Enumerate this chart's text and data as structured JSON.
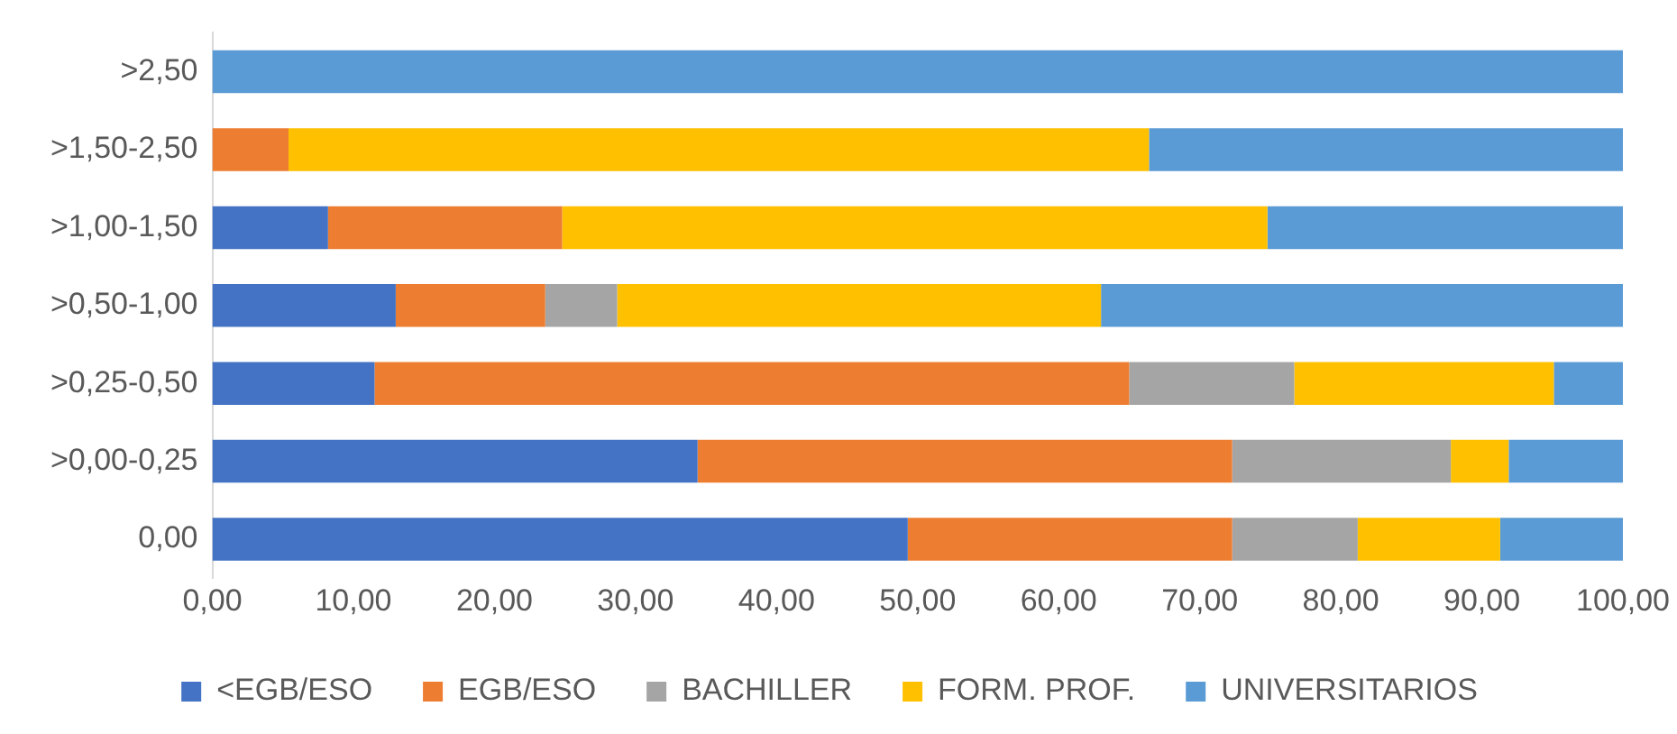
{
  "chart_data": {
    "type": "bar",
    "orientation": "horizontal",
    "stacked": true,
    "legend": "bottom",
    "grid": false,
    "categories": [
      ">2,50",
      ">1,50-2,50",
      ">1,00-1,50",
      ">0,50-1,00",
      ">0,25-0,50",
      ">0,00-0,25",
      "0,00"
    ],
    "xlim": [
      0,
      100
    ],
    "xticks": [
      {
        "value": 0,
        "label": "0,00"
      },
      {
        "value": 10,
        "label": "10,00"
      },
      {
        "value": 20,
        "label": "20,00"
      },
      {
        "value": 30,
        "label": "30,00"
      },
      {
        "value": 40,
        "label": "40,00"
      },
      {
        "value": 50,
        "label": "50,00"
      },
      {
        "value": 60,
        "label": "60,00"
      },
      {
        "value": 70,
        "label": "70,00"
      },
      {
        "value": 80,
        "label": "80,00"
      },
      {
        "value": 90,
        "label": "90,00"
      },
      {
        "value": 100,
        "label": "100,00"
      }
    ],
    "series": [
      {
        "name": "<EGB/ESO",
        "color": "#4472c4",
        "values": [
          0,
          0,
          8.2,
          13.0,
          11.5,
          34.4,
          49.3
        ]
      },
      {
        "name": "EGB/ESO",
        "color": "#ed7d31",
        "values": [
          0,
          5.4,
          16.6,
          10.6,
          53.5,
          37.9,
          23.0
        ]
      },
      {
        "name": "BACHILLER",
        "color": "#a5a5a5",
        "values": [
          0,
          0,
          0,
          5.1,
          11.7,
          15.5,
          8.9
        ]
      },
      {
        "name": "FORM. PROF.",
        "color": "#ffc000",
        "values": [
          0,
          61.0,
          50.0,
          34.3,
          18.4,
          4.1,
          10.1
        ]
      },
      {
        "name": "UNIVERSITARIOS",
        "color": "#5b9bd5",
        "values": [
          100,
          33.6,
          25.2,
          37.0,
          4.9,
          8.1,
          8.7
        ]
      }
    ]
  }
}
